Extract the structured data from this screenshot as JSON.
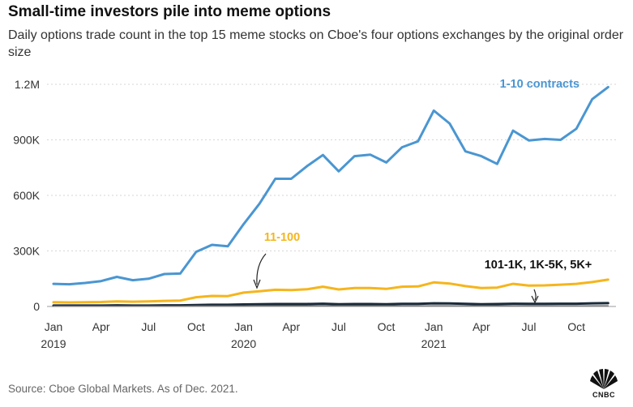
{
  "header": {
    "title": "Small-time investors pile into meme options",
    "subtitle": "Daily options trade count in the top 15 meme stocks on Cboe's four options exchanges by the original order size"
  },
  "footer": {
    "source": "Source: Cboe Global Markets. As of Dec. 2021.",
    "logo_text": "CNBC",
    "logo_icon": "cnbc-peacock-icon"
  },
  "chart_data": {
    "type": "line",
    "title": "",
    "xlabel": "",
    "ylabel": "",
    "ylim": [
      0,
      1200000
    ],
    "grid": true,
    "y_ticks": [
      {
        "value": 0,
        "label": "0"
      },
      {
        "value": 300000,
        "label": "300K"
      },
      {
        "value": 600000,
        "label": "600K"
      },
      {
        "value": 900000,
        "label": "900K"
      },
      {
        "value": 1200000,
        "label": "1.2M"
      }
    ],
    "x_ticks": [
      {
        "month": "2019-01",
        "label": "Jan",
        "year": "2019"
      },
      {
        "month": "2019-04",
        "label": "Apr",
        "year": ""
      },
      {
        "month": "2019-07",
        "label": "Jul",
        "year": ""
      },
      {
        "month": "2019-10",
        "label": "Oct",
        "year": ""
      },
      {
        "month": "2020-01",
        "label": "Jan",
        "year": "2020"
      },
      {
        "month": "2020-04",
        "label": "Apr",
        "year": ""
      },
      {
        "month": "2020-07",
        "label": "Jul",
        "year": ""
      },
      {
        "month": "2020-10",
        "label": "Oct",
        "year": ""
      },
      {
        "month": "2021-01",
        "label": "Jan",
        "year": "2021"
      },
      {
        "month": "2021-04",
        "label": "Apr",
        "year": ""
      },
      {
        "month": "2021-07",
        "label": "Jul",
        "year": ""
      },
      {
        "month": "2021-10",
        "label": "Oct",
        "year": ""
      }
    ],
    "x": [
      "2019-01",
      "2019-02",
      "2019-03",
      "2019-04",
      "2019-05",
      "2019-06",
      "2019-07",
      "2019-08",
      "2019-09",
      "2019-10",
      "2019-11",
      "2019-12",
      "2020-01",
      "2020-02",
      "2020-03",
      "2020-04",
      "2020-05",
      "2020-06",
      "2020-07",
      "2020-08",
      "2020-09",
      "2020-10",
      "2020-11",
      "2020-12",
      "2021-01",
      "2021-02",
      "2021-03",
      "2021-04",
      "2021-05",
      "2021-06",
      "2021-07",
      "2021-08",
      "2021-09",
      "2021-10",
      "2021-11",
      "2021-12"
    ],
    "series": [
      {
        "name": "1-10 contracts",
        "color": "#4a96d2",
        "values": [
          122000,
          120000,
          127000,
          137000,
          160000,
          142000,
          150000,
          175000,
          178000,
          295000,
          333000,
          325000,
          445000,
          555000,
          690000,
          690000,
          758000,
          818000,
          730000,
          812000,
          820000,
          778000,
          860000,
          892000,
          1058000,
          988000,
          838000,
          812000,
          770000,
          950000,
          897000,
          905000,
          900000,
          960000,
          1120000,
          1185000
        ]
      },
      {
        "name": "11-100",
        "color": "#f5b51c",
        "values": [
          23000,
          22000,
          23000,
          24000,
          27000,
          26000,
          27000,
          30000,
          32000,
          50000,
          57000,
          56000,
          75000,
          82000,
          90000,
          89000,
          93000,
          107000,
          92000,
          100000,
          100000,
          95000,
          107000,
          108000,
          130000,
          124000,
          110000,
          100000,
          102000,
          122000,
          113000,
          114000,
          118000,
          122000,
          132000,
          145000
        ]
      },
      {
        "name": "101-1K, 1K-5K, 5K+",
        "color": "#1a2a3a",
        "values": [
          5000,
          5000,
          5000,
          5000,
          6000,
          5000,
          5000,
          6000,
          6000,
          8000,
          9000,
          9000,
          11000,
          12000,
          13000,
          13000,
          13000,
          15000,
          12000,
          13000,
          13000,
          12000,
          14000,
          14000,
          17000,
          16000,
          14000,
          12000,
          13000,
          15000,
          14000,
          14000,
          15000,
          15000,
          17000,
          18000
        ]
      },
      {
        "name": "",
        "color": "#7a7a7a",
        "values": [
          1000,
          1000,
          1000,
          1000,
          1000,
          1000,
          1000,
          1000,
          1000,
          2000,
          2000,
          2000,
          2000,
          3000,
          3000,
          3000,
          3000,
          3000,
          3000,
          3000,
          3000,
          3000,
          3000,
          3000,
          4000,
          4000,
          3000,
          3000,
          3000,
          3000,
          3000,
          3000,
          3000,
          3000,
          4000,
          4000
        ]
      }
    ],
    "annotations": [
      {
        "text": "1-10 contracts",
        "series": 0
      },
      {
        "text": "11-100",
        "series": 1
      },
      {
        "text": "101-1K, 1K-5K, 5K+",
        "series": 2
      }
    ]
  }
}
